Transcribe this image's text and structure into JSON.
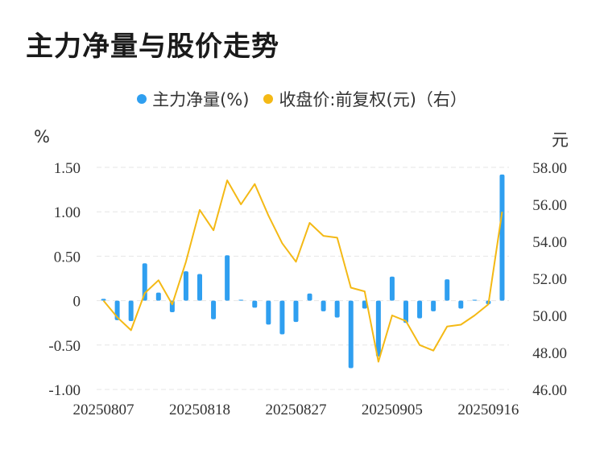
{
  "title": "主力净量与股价走势",
  "legend": {
    "series1": "主力净量(%)",
    "series2": "收盘价:前复权(元)（右）"
  },
  "units": {
    "left": "%",
    "right": "元"
  },
  "colors": {
    "bar": "#2f9ff0",
    "line": "#f4b915",
    "grid": "#e6e6e6"
  },
  "chart_data": {
    "type": "bar+line",
    "x_tick_labels": [
      "20250807",
      "20250818",
      "20250827",
      "20250905",
      "20250916"
    ],
    "y_left": {
      "ticks": [
        "1.50",
        "1.00",
        "0.50",
        "0",
        "-0.50",
        "-1.00"
      ],
      "range": [
        -1.0,
        1.5
      ]
    },
    "y_right": {
      "ticks": [
        "58.00",
        "56.00",
        "54.00",
        "52.00",
        "50.00",
        "48.00",
        "46.00"
      ],
      "range": [
        46.0,
        58.0
      ]
    },
    "series": [
      {
        "name": "主力净量(%)",
        "type": "bar",
        "values": [
          0.02,
          -0.22,
          -0.23,
          0.42,
          0.09,
          -0.13,
          0.33,
          0.3,
          -0.21,
          0.51,
          0.01,
          -0.08,
          -0.27,
          -0.38,
          -0.24,
          0.08,
          -0.12,
          -0.19,
          -0.76,
          -0.09,
          -0.63,
          0.27,
          -0.25,
          -0.2,
          -0.12,
          0.24,
          -0.09,
          0.01,
          -0.04,
          1.42
        ]
      },
      {
        "name": "收盘价:前复权(元)（右）",
        "type": "line",
        "values": [
          50.8,
          49.9,
          49.2,
          51.2,
          51.9,
          50.6,
          52.9,
          55.7,
          54.6,
          57.3,
          56.0,
          57.1,
          55.4,
          53.9,
          52.9,
          55.0,
          54.3,
          54.2,
          51.5,
          51.3,
          47.5,
          50.0,
          49.7,
          48.4,
          48.1,
          49.4,
          49.5,
          50.0,
          50.6,
          55.6
        ]
      }
    ]
  }
}
